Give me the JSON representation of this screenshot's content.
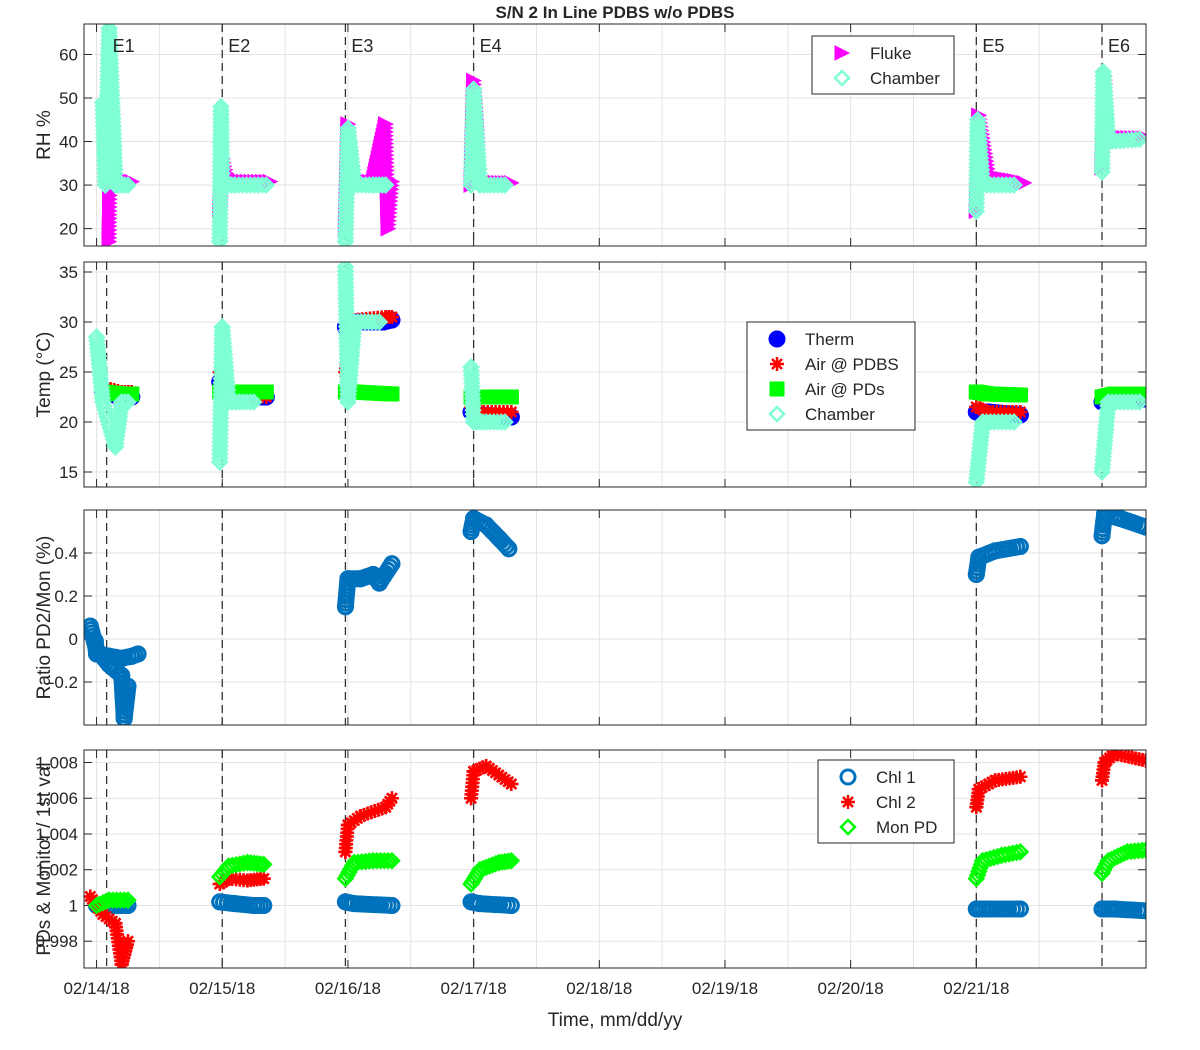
{
  "figure_title": "S/N 2 In Line PDBS w/o PDBS",
  "x_axis_label": "Time, mm/dd/yy",
  "x_ticks": [
    "02/14/18",
    "02/15/18",
    "02/16/18",
    "02/17/18",
    "02/18/18",
    "02/19/18",
    "02/20/18",
    "02/21/18"
  ],
  "event_labels": [
    "E1",
    "E2",
    "E3",
    "E4",
    "E5",
    "E6"
  ],
  "chart_data": [
    {
      "type": "scatter",
      "title": "S/N 2 In Line PDBS w/o PDBS",
      "ylabel": "RH %",
      "ylim": [
        16,
        67
      ],
      "yticks": [
        "20",
        "30",
        "40",
        "50",
        "60"
      ],
      "grid": true,
      "legend": "top-right",
      "series": [
        {
          "name": "Fluke",
          "color": "#ff00ff",
          "marker": "triangle-right",
          "values": [
            [
              0.1,
              17
            ],
            [
              0.11,
              40
            ],
            [
              0.12,
              32
            ],
            [
              0.15,
              30.5
            ],
            [
              0.2,
              31
            ],
            [
              0.28,
              30.8
            ],
            [
              0.98,
              24
            ],
            [
              1.0,
              36
            ],
            [
              1.05,
              31
            ],
            [
              1.2,
              30.8
            ],
            [
              1.38,
              30.8
            ],
            [
              1.98,
              20
            ],
            [
              2.0,
              44
            ],
            [
              2.05,
              31
            ],
            [
              2.2,
              30.8
            ],
            [
              2.3,
              44
            ],
            [
              2.32,
              20
            ],
            [
              2.35,
              30.8
            ],
            [
              2.98,
              30
            ],
            [
              3.0,
              54
            ],
            [
              3.05,
              31
            ],
            [
              3.2,
              30.5
            ],
            [
              3.3,
              30.5
            ],
            [
              7.0,
              24
            ],
            [
              7.02,
              46
            ],
            [
              7.1,
              32
            ],
            [
              7.3,
              31
            ],
            [
              7.38,
              30.5
            ],
            [
              8.0,
              34
            ],
            [
              8.02,
              55
            ],
            [
              8.05,
              41
            ],
            [
              8.3,
              40.8
            ],
            [
              8.35,
              40.8
            ]
          ]
        },
        {
          "name": "Chamber",
          "color": "#7fffd4",
          "marker": "diamond",
          "values": [
            [
              0.05,
              49
            ],
            [
              0.07,
              30
            ],
            [
              0.1,
              66
            ],
            [
              0.15,
              30
            ],
            [
              0.25,
              30
            ],
            [
              0.98,
              17
            ],
            [
              0.99,
              48
            ],
            [
              1.0,
              30
            ],
            [
              1.1,
              30
            ],
            [
              1.35,
              30
            ],
            [
              1.98,
              17
            ],
            [
              2.0,
              43
            ],
            [
              2.05,
              30
            ],
            [
              2.2,
              30
            ],
            [
              2.3,
              30
            ],
            [
              2.98,
              30
            ],
            [
              3.0,
              52
            ],
            [
              3.05,
              30
            ],
            [
              3.25,
              30
            ],
            [
              7.0,
              24
            ],
            [
              7.01,
              45
            ],
            [
              7.05,
              30
            ],
            [
              7.3,
              30
            ],
            [
              8.0,
              33
            ],
            [
              8.01,
              56
            ],
            [
              8.05,
              40
            ],
            [
              8.3,
              40.5
            ]
          ]
        }
      ]
    },
    {
      "type": "scatter",
      "ylabel": "Temp (°C)",
      "ylim": [
        13.5,
        36
      ],
      "yticks": [
        "15",
        "20",
        "25",
        "30",
        "35"
      ],
      "grid": true,
      "legend": "right",
      "series": [
        {
          "name": "Therm",
          "color": "#0000ff",
          "marker": "circle",
          "values": [
            [
              0.05,
              23
            ],
            [
              0.2,
              22.5
            ],
            [
              0.28,
              22.5
            ],
            [
              0.98,
              24
            ],
            [
              1.05,
              22.5
            ],
            [
              1.35,
              22.5
            ],
            [
              1.98,
              29.5
            ],
            [
              2.05,
              30
            ],
            [
              2.28,
              30
            ],
            [
              2.35,
              30.2
            ],
            [
              2.98,
              21
            ],
            [
              3.05,
              20.7
            ],
            [
              3.3,
              20.5
            ],
            [
              7.0,
              21
            ],
            [
              7.1,
              21
            ],
            [
              7.35,
              20.7
            ],
            [
              8.0,
              22
            ],
            [
              8.1,
              22.3
            ],
            [
              8.35,
              22.3
            ]
          ]
        },
        {
          "name": "Air @ PDBS",
          "color": "#ff0000",
          "marker": "asterisk",
          "values": [
            [
              0.05,
              23.5
            ],
            [
              0.2,
              23
            ],
            [
              0.28,
              23
            ],
            [
              0.98,
              25
            ],
            [
              1.05,
              23
            ],
            [
              1.35,
              22.5
            ],
            [
              1.98,
              25
            ],
            [
              2.05,
              30.2
            ],
            [
              2.3,
              30.5
            ],
            [
              2.35,
              30.5
            ],
            [
              2.98,
              21.5
            ],
            [
              3.05,
              21
            ],
            [
              3.3,
              21
            ],
            [
              7.0,
              21.5
            ],
            [
              7.1,
              21
            ],
            [
              7.35,
              21
            ],
            [
              8.0,
              22.5
            ],
            [
              8.1,
              22.5
            ],
            [
              8.35,
              22.5
            ]
          ]
        },
        {
          "name": "Air @ PDs",
          "color": "#00ff00",
          "marker": "square",
          "values": [
            [
              0.05,
              23
            ],
            [
              0.2,
              22.8
            ],
            [
              0.28,
              22.8
            ],
            [
              0.98,
              23
            ],
            [
              1.05,
              23
            ],
            [
              1.35,
              23
            ],
            [
              1.98,
              23
            ],
            [
              2.05,
              23
            ],
            [
              2.35,
              22.8
            ],
            [
              2.98,
              22.5
            ],
            [
              3.05,
              22.5
            ],
            [
              3.3,
              22.5
            ],
            [
              7.0,
              23
            ],
            [
              7.1,
              22.8
            ],
            [
              7.35,
              22.7
            ],
            [
              8.0,
              22.5
            ],
            [
              8.1,
              22.8
            ],
            [
              8.35,
              22.8
            ]
          ]
        },
        {
          "name": "Chamber",
          "color": "#7fffd4",
          "marker": "diamond",
          "values": [
            [
              0.0,
              28.5
            ],
            [
              0.05,
              22
            ],
            [
              0.15,
              17.5
            ],
            [
              0.2,
              22
            ],
            [
              0.25,
              22
            ],
            [
              0.98,
              16
            ],
            [
              1.0,
              29.5
            ],
            [
              1.05,
              22
            ],
            [
              1.25,
              22
            ],
            [
              1.98,
              35.5
            ],
            [
              2.0,
              22
            ],
            [
              2.05,
              30
            ],
            [
              2.25,
              30
            ],
            [
              2.98,
              25.5
            ],
            [
              3.0,
              20
            ],
            [
              3.1,
              20
            ],
            [
              3.25,
              20
            ],
            [
              7.0,
              14
            ],
            [
              7.05,
              20
            ],
            [
              7.3,
              20
            ],
            [
              8.0,
              15
            ],
            [
              8.05,
              22
            ],
            [
              8.3,
              22
            ]
          ]
        }
      ]
    },
    {
      "type": "scatter",
      "ylabel": "Ratio PD2/Mon (%)",
      "ylim": [
        -0.4,
        0.6
      ],
      "yticks": [
        "-0.2",
        "0",
        "0.2",
        "0.4"
      ],
      "grid": true,
      "series": [
        {
          "color": "#0072bd",
          "marker": "circle",
          "values": [
            [
              -0.05,
              0.06
            ],
            [
              0.0,
              -0.05
            ],
            [
              0.1,
              -0.12
            ],
            [
              0.2,
              -0.17
            ],
            [
              0.22,
              -0.37
            ],
            [
              0.25,
              -0.22
            ],
            [
              -0.01,
              -0.01
            ],
            [
              0.0,
              -0.07
            ],
            [
              0.1,
              -0.08
            ],
            [
              0.2,
              -0.09
            ],
            [
              0.28,
              -0.08
            ],
            [
              0.33,
              -0.07
            ],
            [
              1.98,
              0.15
            ],
            [
              2.0,
              0.28
            ],
            [
              2.1,
              0.28
            ],
            [
              2.2,
              0.3
            ],
            [
              2.25,
              0.26
            ],
            [
              2.35,
              0.35
            ],
            [
              2.98,
              0.5
            ],
            [
              3.0,
              0.56
            ],
            [
              3.1,
              0.53
            ],
            [
              3.2,
              0.47
            ],
            [
              3.28,
              0.42
            ],
            [
              7.0,
              0.3
            ],
            [
              7.02,
              0.38
            ],
            [
              7.15,
              0.41
            ],
            [
              7.35,
              0.43
            ],
            [
              8.0,
              0.48
            ],
            [
              8.02,
              0.58
            ],
            [
              8.15,
              0.56
            ],
            [
              8.35,
              0.52
            ]
          ]
        }
      ]
    },
    {
      "type": "scatter",
      "ylabel": "PDs & Monitor / 1st val",
      "ylim": [
        0.9965,
        1.0087
      ],
      "yticks": [
        "0.998",
        "1",
        "1.002",
        "1.004",
        "1.006",
        "1.008"
      ],
      "grid": true,
      "legend": "top-right",
      "series": [
        {
          "name": "Chl 1",
          "color": "#0072bd",
          "marker": "circle",
          "values": [
            [
              0.0,
              1.0
            ],
            [
              0.15,
              1.0
            ],
            [
              0.25,
              1.0
            ],
            [
              0.98,
              1.0002
            ],
            [
              1.1,
              1.0001
            ],
            [
              1.25,
              1.0
            ],
            [
              1.33,
              1.0
            ],
            [
              1.98,
              1.0002
            ],
            [
              2.05,
              1.0001
            ],
            [
              2.35,
              1.0
            ],
            [
              2.98,
              1.0002
            ],
            [
              3.05,
              1.0001
            ],
            [
              3.3,
              1.0
            ],
            [
              7.0,
              0.9998
            ],
            [
              7.1,
              0.9998
            ],
            [
              7.35,
              0.9998
            ],
            [
              8.0,
              0.9998
            ],
            [
              8.1,
              0.9998
            ],
            [
              8.35,
              0.9997
            ]
          ]
        },
        {
          "name": "Chl 2",
          "color": "#ff0000",
          "marker": "asterisk",
          "values": [
            [
              -0.05,
              1.0005
            ],
            [
              0.05,
              0.9995
            ],
            [
              0.15,
              0.999
            ],
            [
              0.2,
              0.9967
            ],
            [
              0.25,
              0.998
            ],
            [
              0.98,
              1.0012
            ],
            [
              1.05,
              1.0015
            ],
            [
              1.2,
              1.0014
            ],
            [
              1.33,
              1.0015
            ],
            [
              1.98,
              1.003
            ],
            [
              2.0,
              1.0045
            ],
            [
              2.1,
              1.005
            ],
            [
              2.3,
              1.0055
            ],
            [
              2.35,
              1.006
            ],
            [
              2.98,
              1.006
            ],
            [
              3.0,
              1.0075
            ],
            [
              3.1,
              1.0078
            ],
            [
              3.3,
              1.0068
            ],
            [
              7.0,
              1.0055
            ],
            [
              7.02,
              1.0065
            ],
            [
              7.15,
              1.007
            ],
            [
              7.35,
              1.0072
            ],
            [
              8.0,
              1.007
            ],
            [
              8.02,
              1.008
            ],
            [
              8.1,
              1.0085
            ],
            [
              8.35,
              1.0081
            ]
          ]
        },
        {
          "name": "Mon PD",
          "color": "#00ff00",
          "marker": "diamond",
          "values": [
            [
              0.0,
              1.0
            ],
            [
              0.1,
              1.0003
            ],
            [
              0.25,
              1.0003
            ],
            [
              0.98,
              1.0016
            ],
            [
              1.05,
              1.0022
            ],
            [
              1.2,
              1.0024
            ],
            [
              1.33,
              1.0023
            ],
            [
              1.98,
              1.0015
            ],
            [
              2.05,
              1.0024
            ],
            [
              2.2,
              1.0025
            ],
            [
              2.35,
              1.0025
            ],
            [
              2.98,
              1.0012
            ],
            [
              3.05,
              1.002
            ],
            [
              3.2,
              1.0024
            ],
            [
              3.3,
              1.0025
            ],
            [
              7.0,
              1.0015
            ],
            [
              7.05,
              1.0025
            ],
            [
              7.2,
              1.0028
            ],
            [
              7.35,
              1.003
            ],
            [
              8.0,
              1.0018
            ],
            [
              8.05,
              1.0025
            ],
            [
              8.2,
              1.003
            ],
            [
              8.35,
              1.0031
            ]
          ]
        }
      ]
    }
  ]
}
